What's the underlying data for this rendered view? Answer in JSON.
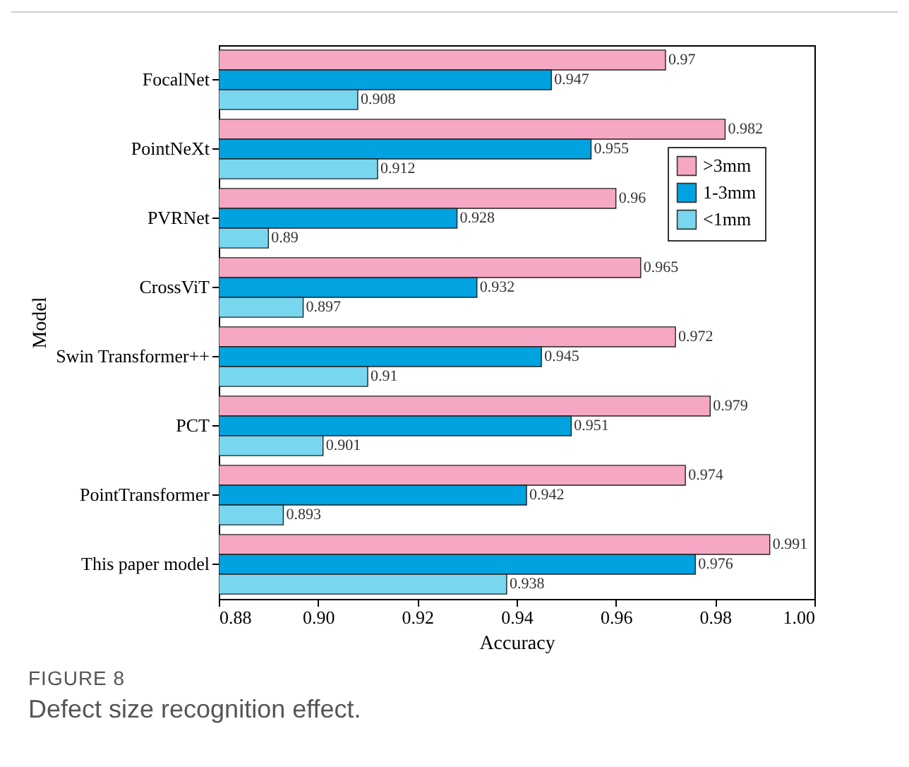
{
  "chart_data": {
    "type": "bar",
    "orientation": "horizontal",
    "xlabel": "Accuracy",
    "ylabel": "Model",
    "categories": [
      "FocalNet",
      "PointNeXt",
      "PVRNet",
      "CrossViT",
      "Swin Transformer++",
      "PCT",
      "PointTransformer",
      "This paper model"
    ],
    "series": [
      {
        "name": ">3mm",
        "color": "#f5a7c3",
        "values": [
          0.97,
          0.982,
          0.96,
          0.965,
          0.972,
          0.979,
          0.974,
          0.991
        ]
      },
      {
        "name": "1-3mm",
        "color": "#00a2e0",
        "values": [
          0.947,
          0.955,
          0.928,
          0.932,
          0.945,
          0.951,
          0.942,
          0.976
        ]
      },
      {
        "name": "<1mm",
        "color": "#78d6ef",
        "values": [
          0.908,
          0.912,
          0.89,
          0.897,
          0.91,
          0.901,
          0.893,
          0.938
        ]
      }
    ],
    "xlim": [
      0.88,
      1.0
    ],
    "xticks": [
      {
        "value": 0.88,
        "label": "0.88"
      },
      {
        "value": 0.9,
        "label": "0.90"
      },
      {
        "value": 0.92,
        "label": "0.92"
      },
      {
        "value": 0.94,
        "label": "0.94"
      },
      {
        "value": 0.96,
        "label": "0.96"
      },
      {
        "value": 0.98,
        "label": "0.98"
      },
      {
        "value": 1.0,
        "label": "1.00"
      }
    ],
    "grid": false,
    "legend": "top right",
    "data_labels": true,
    "annotations": [
      "FIGURE 8",
      "Defect size recognition effect."
    ]
  }
}
